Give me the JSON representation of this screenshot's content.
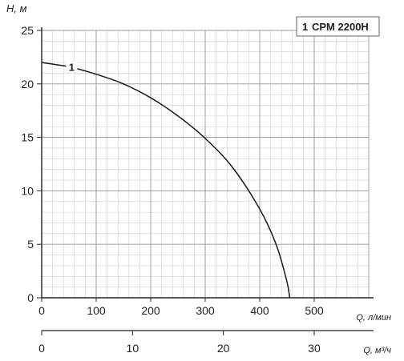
{
  "chart_data": {
    "type": "line",
    "ylabel": "H, м",
    "xlabel": "Q, л/мин",
    "xlabel2": "Q, м³/ч",
    "xlim": [
      0,
      600
    ],
    "ylim": [
      0,
      25
    ],
    "x2lim": [
      0,
      36
    ],
    "x_ticks": [
      "0",
      "100",
      "200",
      "300",
      "400",
      "500"
    ],
    "y_ticks": [
      "0",
      "5",
      "10",
      "15",
      "20",
      "25"
    ],
    "x2_ticks": [
      "0",
      "10",
      "20",
      "30"
    ],
    "grid": true,
    "legend": {
      "position": "top-right",
      "number": "1",
      "label": "CPM 2200H"
    },
    "series": [
      {
        "name": "CPM 2200H",
        "marker_label": "1",
        "x": [
          0,
          50,
          100,
          150,
          200,
          250,
          300,
          350,
          400,
          430,
          450,
          455
        ],
        "y": [
          22.0,
          21.6,
          20.9,
          20.0,
          18.7,
          17.0,
          14.9,
          12.2,
          8.3,
          5.0,
          1.5,
          0.0
        ]
      }
    ]
  }
}
